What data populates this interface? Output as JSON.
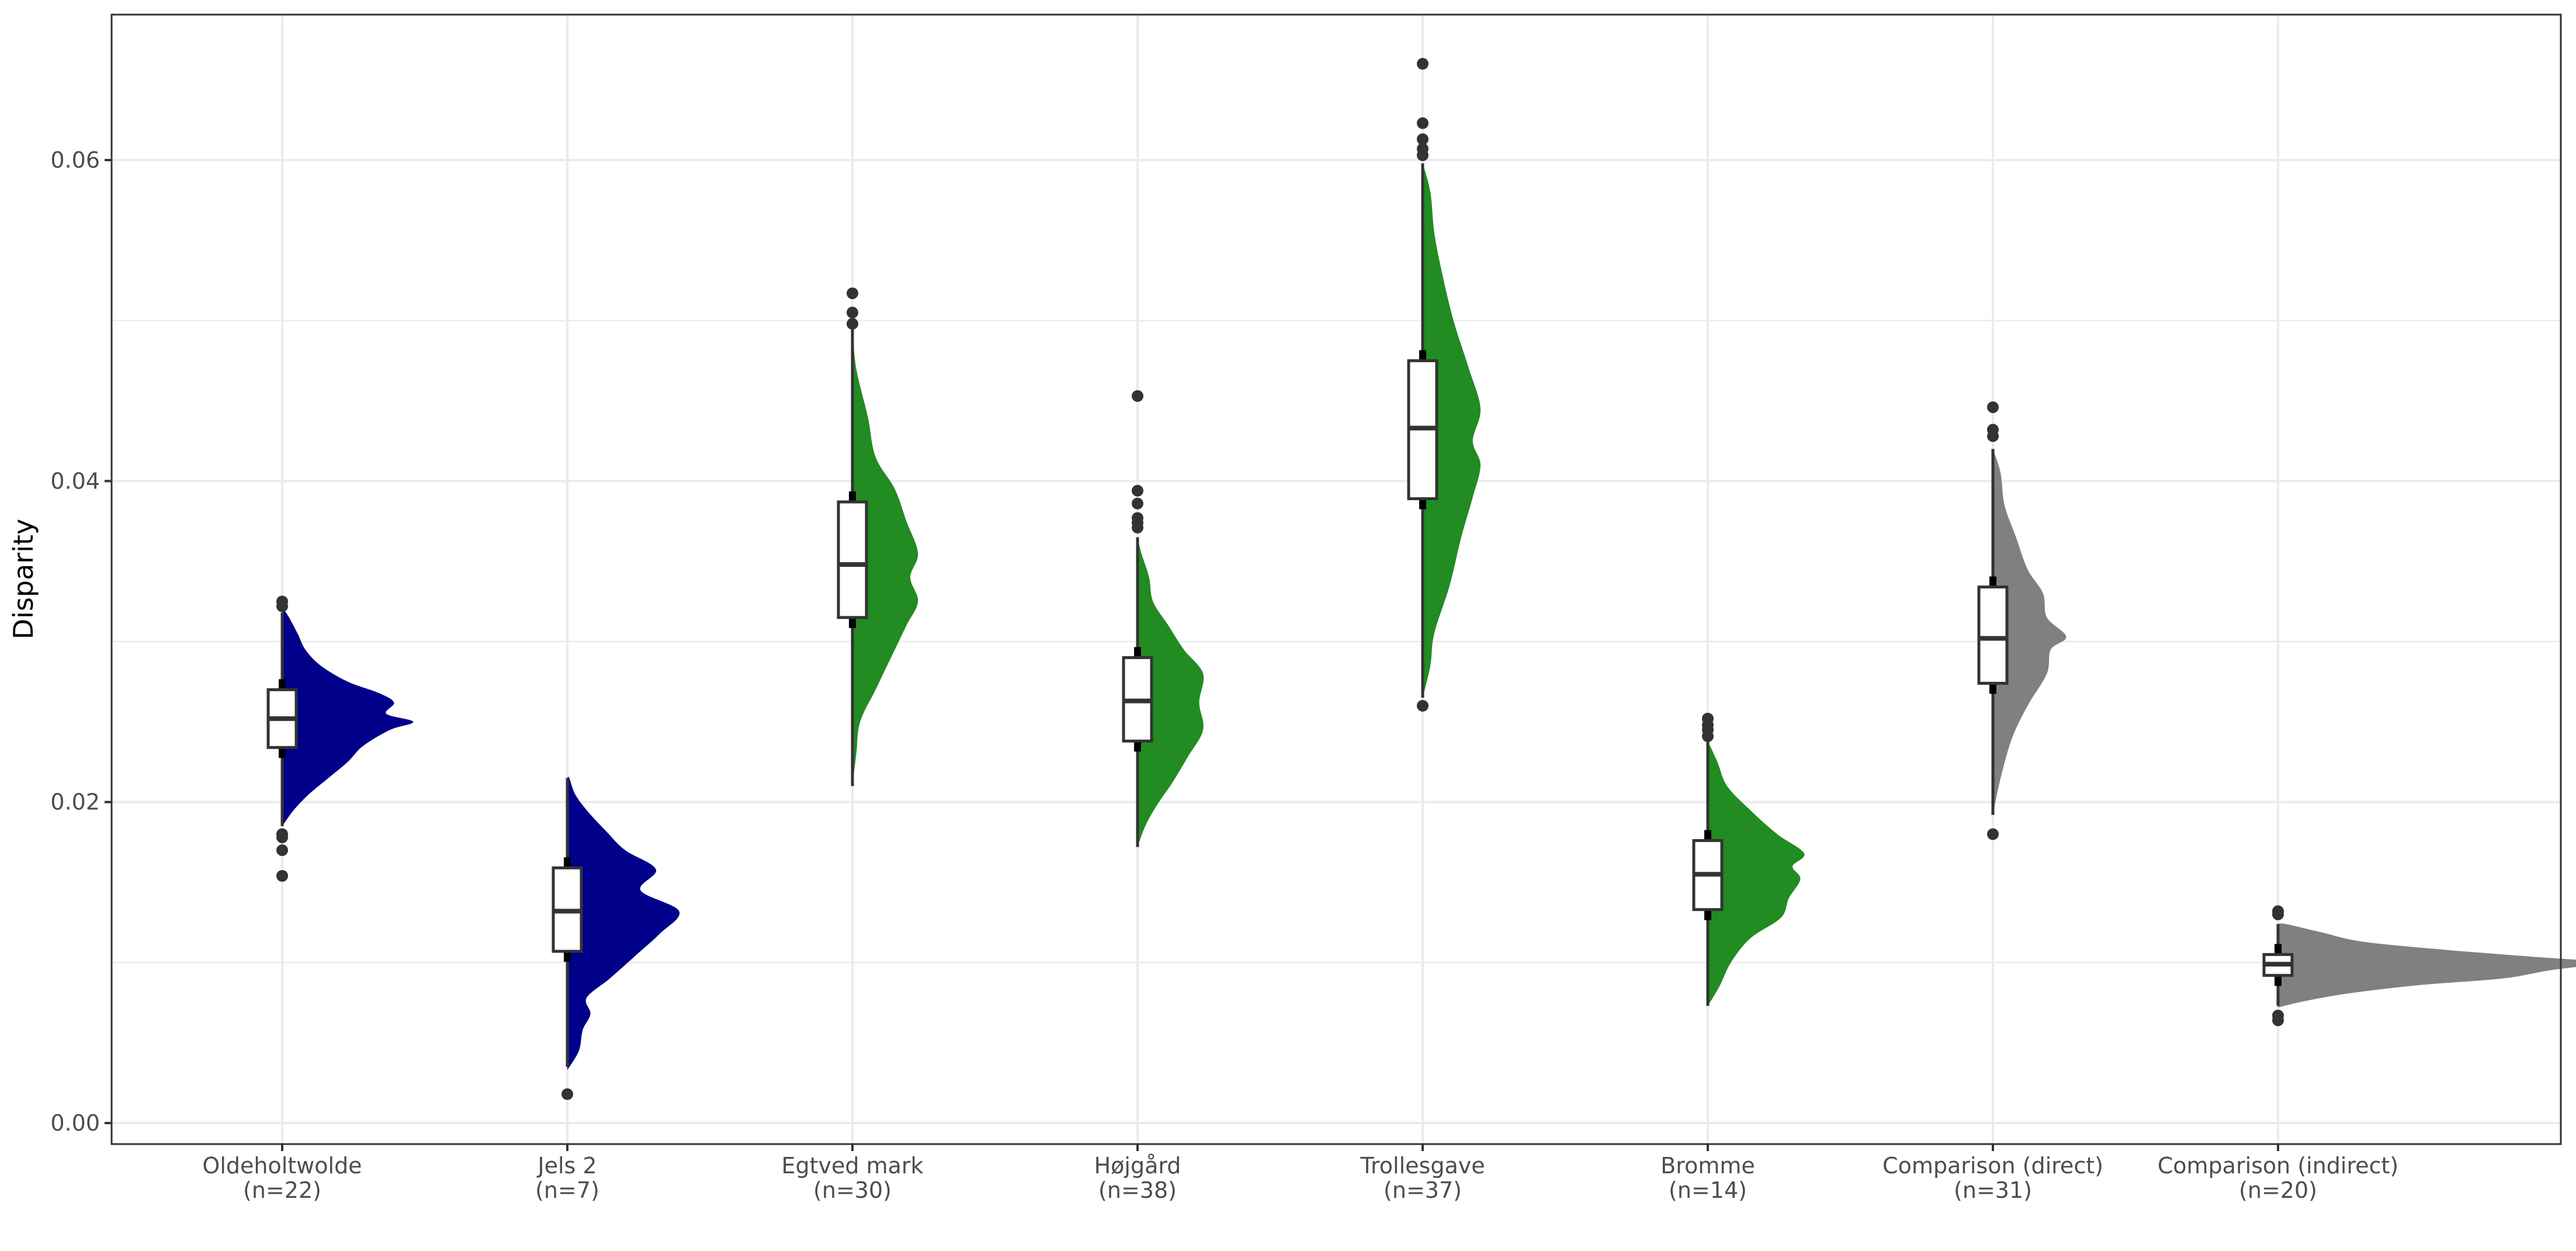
{
  "chart_data": {
    "type": "raincloud",
    "title": "",
    "xlabel": "",
    "ylabel": "Disparity",
    "ylim": [
      -0.0014,
      0.0688
    ],
    "yticks": [
      {
        "value": 0.0,
        "label": "0.00"
      },
      {
        "value": 0.02,
        "label": "0.02"
      },
      {
        "value": 0.04,
        "label": "0.04"
      },
      {
        "value": 0.06,
        "label": "0.06"
      }
    ],
    "minor_gridlines": [
      0.01,
      0.03,
      0.05
    ],
    "grid": true,
    "legend": "none",
    "colors": {
      "blue": "#00008B",
      "green": "#228B22",
      "grey": "#808080",
      "box_line": "#333333",
      "gridline": "#ebebeb",
      "panel_border": "#333333"
    },
    "categories": [
      {
        "name": "Oldeholtwolde",
        "n_label": "(n=22)",
        "color": "#00008B",
        "box": {
          "q1": 0.0234,
          "median": 0.0252,
          "q3": 0.027,
          "whisker_low": 0.0185,
          "whisker_high": 0.0318
        },
        "outliers": [
          0.0325,
          0.0322,
          0.018,
          0.0178,
          0.017,
          0.0154
        ],
        "density": [
          [
            0.0185,
            0.0
          ],
          [
            0.0195,
            0.06
          ],
          [
            0.0205,
            0.14
          ],
          [
            0.0215,
            0.24
          ],
          [
            0.0225,
            0.34
          ],
          [
            0.0235,
            0.42
          ],
          [
            0.0245,
            0.56
          ],
          [
            0.025,
            0.68
          ],
          [
            0.0255,
            0.54
          ],
          [
            0.0262,
            0.58
          ],
          [
            0.0268,
            0.5
          ],
          [
            0.0275,
            0.34
          ],
          [
            0.0285,
            0.2
          ],
          [
            0.0295,
            0.12
          ],
          [
            0.0305,
            0.08
          ],
          [
            0.0318,
            0.02
          ]
        ]
      },
      {
        "name": "Jels 2",
        "n_label": "(n=7)",
        "color": "#00008B",
        "box": {
          "q1": 0.0107,
          "median": 0.0132,
          "q3": 0.0159,
          "whisker_low": 0.0035,
          "whisker_high": 0.0215
        },
        "outliers": [
          0.0018
        ],
        "density": [
          [
            0.0033,
            0.0
          ],
          [
            0.0045,
            0.06
          ],
          [
            0.0058,
            0.08
          ],
          [
            0.0068,
            0.12
          ],
          [
            0.0078,
            0.1
          ],
          [
            0.009,
            0.22
          ],
          [
            0.0105,
            0.36
          ],
          [
            0.0118,
            0.48
          ],
          [
            0.0132,
            0.58
          ],
          [
            0.0145,
            0.38
          ],
          [
            0.0158,
            0.46
          ],
          [
            0.017,
            0.3
          ],
          [
            0.0182,
            0.2
          ],
          [
            0.0195,
            0.1
          ],
          [
            0.0205,
            0.04
          ],
          [
            0.0215,
            0.01
          ]
        ]
      },
      {
        "name": "Egtved mark",
        "n_label": "(n=30)",
        "color": "#228B22",
        "box": {
          "q1": 0.0315,
          "median": 0.0348,
          "q3": 0.0387,
          "whisker_low": 0.021,
          "whisker_high": 0.0495
        },
        "outliers": [
          0.0517,
          0.0505,
          0.0498
        ],
        "density": [
          [
            0.021,
            0.0
          ],
          [
            0.023,
            0.02
          ],
          [
            0.025,
            0.04
          ],
          [
            0.027,
            0.12
          ],
          [
            0.029,
            0.2
          ],
          [
            0.031,
            0.28
          ],
          [
            0.0325,
            0.34
          ],
          [
            0.034,
            0.3
          ],
          [
            0.0355,
            0.34
          ],
          [
            0.0375,
            0.28
          ],
          [
            0.0395,
            0.22
          ],
          [
            0.0415,
            0.12
          ],
          [
            0.044,
            0.08
          ],
          [
            0.047,
            0.02
          ],
          [
            0.0495,
            0.0
          ]
        ]
      },
      {
        "name": "Højgård",
        "n_label": "(n=38)",
        "color": "#228B22",
        "box": {
          "q1": 0.0238,
          "median": 0.0263,
          "q3": 0.029,
          "whisker_low": 0.0172,
          "whisker_high": 0.0365
        },
        "outliers": [
          0.0453,
          0.0394,
          0.0386,
          0.0377,
          0.0374,
          0.0371
        ],
        "density": [
          [
            0.0172,
            0.0
          ],
          [
            0.0185,
            0.04
          ],
          [
            0.0198,
            0.1
          ],
          [
            0.0212,
            0.18
          ],
          [
            0.0228,
            0.26
          ],
          [
            0.0245,
            0.34
          ],
          [
            0.0262,
            0.32
          ],
          [
            0.028,
            0.34
          ],
          [
            0.0295,
            0.24
          ],
          [
            0.031,
            0.16
          ],
          [
            0.0325,
            0.08
          ],
          [
            0.034,
            0.06
          ],
          [
            0.0355,
            0.02
          ],
          [
            0.0365,
            0.0
          ]
        ]
      },
      {
        "name": "Trollesgave",
        "n_label": "(n=37)",
        "color": "#228B22",
        "box": {
          "q1": 0.0389,
          "median": 0.0433,
          "q3": 0.0475,
          "whisker_low": 0.0265,
          "whisker_high": 0.0598
        },
        "outliers": [
          0.066,
          0.0623,
          0.0613,
          0.0607,
          0.0603,
          0.026
        ],
        "density": [
          [
            0.0265,
            0.0
          ],
          [
            0.0285,
            0.04
          ],
          [
            0.0305,
            0.06
          ],
          [
            0.0335,
            0.14
          ],
          [
            0.0365,
            0.2
          ],
          [
            0.039,
            0.26
          ],
          [
            0.041,
            0.3
          ],
          [
            0.0425,
            0.26
          ],
          [
            0.0445,
            0.3
          ],
          [
            0.047,
            0.24
          ],
          [
            0.05,
            0.16
          ],
          [
            0.053,
            0.1
          ],
          [
            0.0555,
            0.06
          ],
          [
            0.058,
            0.04
          ],
          [
            0.0598,
            0.0
          ]
        ]
      },
      {
        "name": "Bromme",
        "n_label": "(n=14)",
        "color": "#228B22",
        "box": {
          "q1": 0.0133,
          "median": 0.0155,
          "q3": 0.0176,
          "whisker_low": 0.0073,
          "whisker_high": 0.0238
        },
        "outliers": [
          0.0252,
          0.0248,
          0.0245,
          0.0241
        ],
        "density": [
          [
            0.0073,
            0.0
          ],
          [
            0.0085,
            0.06
          ],
          [
            0.01,
            0.12
          ],
          [
            0.0115,
            0.22
          ],
          [
            0.0128,
            0.38
          ],
          [
            0.014,
            0.42
          ],
          [
            0.0152,
            0.48
          ],
          [
            0.016,
            0.44
          ],
          [
            0.0168,
            0.5
          ],
          [
            0.018,
            0.36
          ],
          [
            0.0195,
            0.22
          ],
          [
            0.021,
            0.1
          ],
          [
            0.0225,
            0.05
          ],
          [
            0.0238,
            0.0
          ]
        ]
      },
      {
        "name": "Comparison (direct)",
        "n_label": "(n=31)",
        "color": "#808080",
        "box": {
          "q1": 0.0274,
          "median": 0.0302,
          "q3": 0.0334,
          "whisker_low": 0.0192,
          "whisker_high": 0.042
        },
        "outliers": [
          0.0446,
          0.0432,
          0.0428,
          0.018
        ],
        "density": [
          [
            0.0192,
            0.0
          ],
          [
            0.0215,
            0.04
          ],
          [
            0.024,
            0.1
          ],
          [
            0.026,
            0.18
          ],
          [
            0.028,
            0.28
          ],
          [
            0.0295,
            0.3
          ],
          [
            0.0303,
            0.38
          ],
          [
            0.0315,
            0.28
          ],
          [
            0.033,
            0.26
          ],
          [
            0.0345,
            0.18
          ],
          [
            0.0365,
            0.12
          ],
          [
            0.0385,
            0.06
          ],
          [
            0.0405,
            0.04
          ],
          [
            0.042,
            0.0
          ]
        ]
      },
      {
        "name": "Comparison (indirect)",
        "n_label": "(n=20)",
        "color": "#808080",
        "box": {
          "q1": 0.0092,
          "median": 0.0099,
          "q3": 0.0105,
          "whisker_low": 0.0073,
          "whisker_high": 0.0124
        },
        "outliers": [
          0.0132,
          0.013,
          0.0067,
          0.0064
        ],
        "density": [
          [
            0.0072,
            0.0
          ],
          [
            0.0076,
            0.14
          ],
          [
            0.0081,
            0.38
          ],
          [
            0.0086,
            0.74
          ],
          [
            0.009,
            1.16
          ],
          [
            0.0095,
            1.4
          ],
          [
            0.01,
            1.66
          ],
          [
            0.0104,
            1.28
          ],
          [
            0.0108,
            0.86
          ],
          [
            0.0113,
            0.44
          ],
          [
            0.0119,
            0.22
          ],
          [
            0.0124,
            0.04
          ]
        ]
      }
    ]
  }
}
